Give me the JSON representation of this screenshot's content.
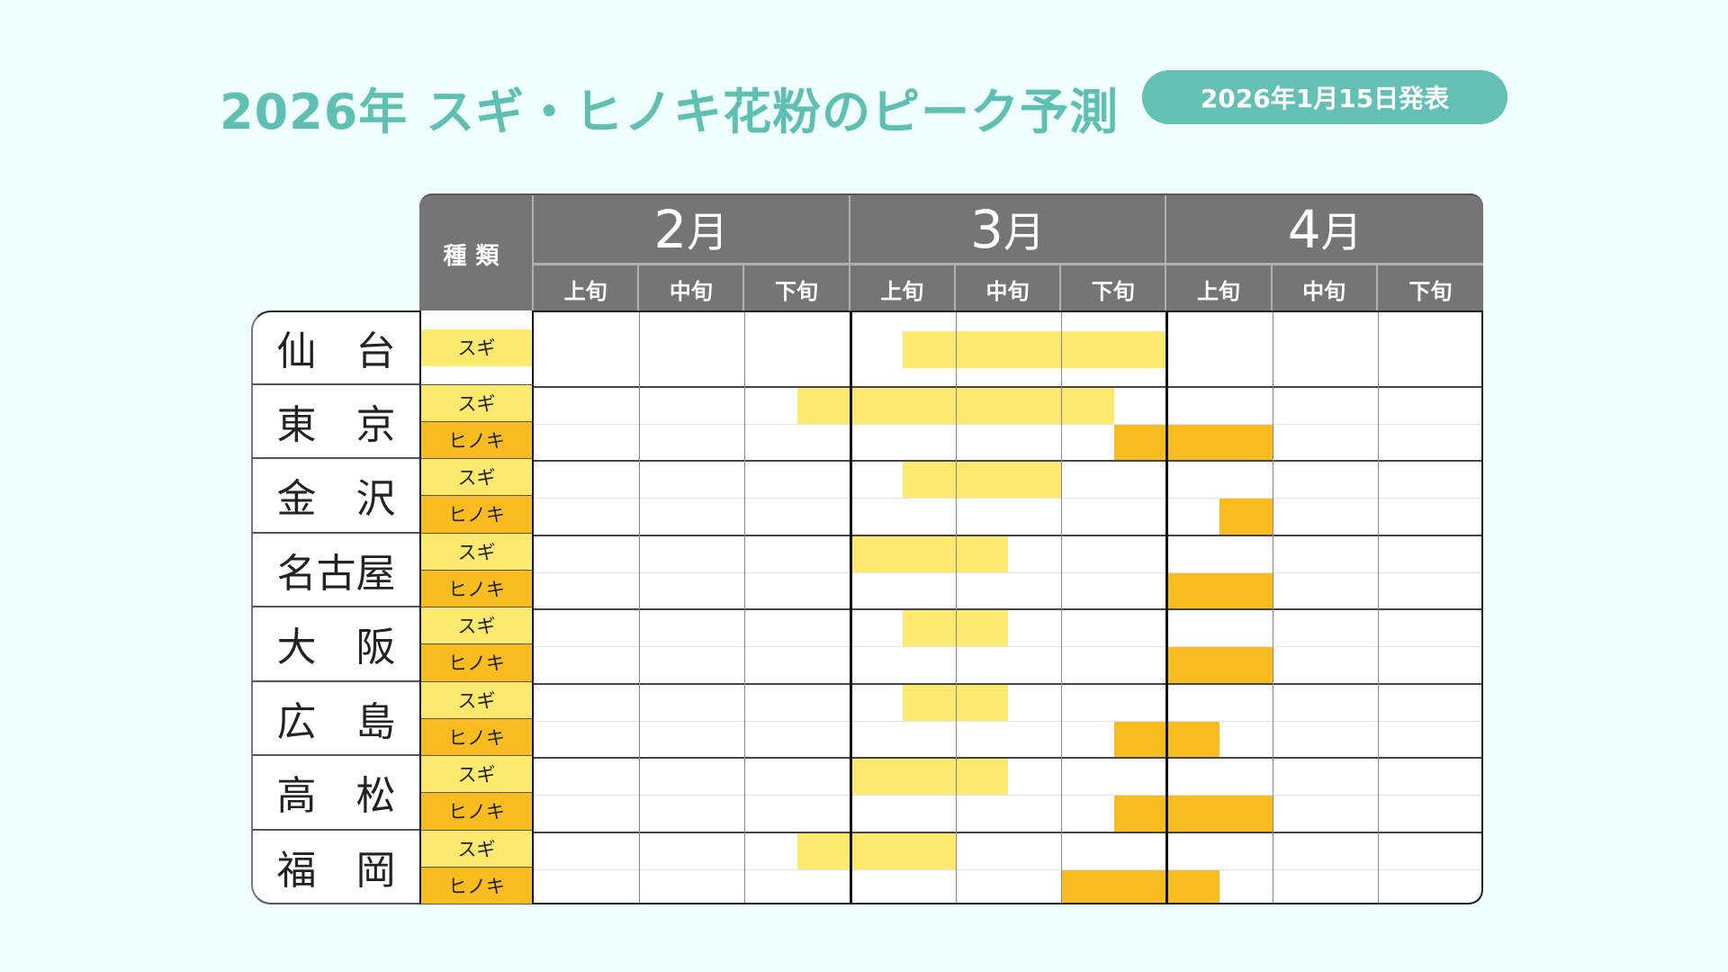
{
  "header": {
    "title": "2026年 スギ・ヒノキ花粉のピーク予測",
    "badge": "2026年1月15日発表"
  },
  "table": {
    "type_header": "種類",
    "months": [
      {
        "num": "2",
        "suffix": "月"
      },
      {
        "num": "3",
        "suffix": "月"
      },
      {
        "num": "4",
        "suffix": "月"
      }
    ],
    "dekads": [
      "上旬",
      "中旬",
      "下旬",
      "上旬",
      "中旬",
      "下旬",
      "上旬",
      "中旬",
      "下旬"
    ],
    "colors": {
      "sugi": "#fde96d",
      "hinoki": "#f8bc20",
      "header": "#757575",
      "accent": "#64c0b4"
    }
  },
  "chart_data": {
    "type": "gantt",
    "title": "2026年 スギ・ヒノキ花粉のピーク予測",
    "subtitle": "2026年1月15日発表",
    "x_units": "dekad index (0=2月上旬 ... 8=4月下旬), half-dekad precision",
    "x_categories": [
      "2月上旬",
      "2月中旬",
      "2月下旬",
      "3月上旬",
      "3月中旬",
      "3月下旬",
      "4月上旬",
      "4月中旬",
      "4月下旬"
    ],
    "legend": [
      {
        "name": "スギ",
        "color": "#fde96d"
      },
      {
        "name": "ヒノキ",
        "color": "#f8bc20"
      }
    ],
    "rows": [
      {
        "city": "仙台",
        "series": [
          {
            "type": "スギ",
            "start": 3.5,
            "end": 6.0
          }
        ]
      },
      {
        "city": "東京",
        "series": [
          {
            "type": "スギ",
            "start": 2.5,
            "end": 5.5
          },
          {
            "type": "ヒノキ",
            "start": 5.5,
            "end": 7.0
          }
        ]
      },
      {
        "city": "金沢",
        "series": [
          {
            "type": "スギ",
            "start": 3.5,
            "end": 5.0
          },
          {
            "type": "ヒノキ",
            "start": 6.5,
            "end": 7.0
          }
        ]
      },
      {
        "city": "名古屋",
        "series": [
          {
            "type": "スギ",
            "start": 3.0,
            "end": 4.5
          },
          {
            "type": "ヒノキ",
            "start": 6.0,
            "end": 7.0
          }
        ]
      },
      {
        "city": "大阪",
        "series": [
          {
            "type": "スギ",
            "start": 3.5,
            "end": 4.5
          },
          {
            "type": "ヒノキ",
            "start": 6.0,
            "end": 7.0
          }
        ]
      },
      {
        "city": "広島",
        "series": [
          {
            "type": "スギ",
            "start": 3.5,
            "end": 4.5
          },
          {
            "type": "ヒノキ",
            "start": 5.5,
            "end": 6.5
          }
        ]
      },
      {
        "city": "高松",
        "series": [
          {
            "type": "スギ",
            "start": 3.0,
            "end": 4.5
          },
          {
            "type": "ヒノキ",
            "start": 5.5,
            "end": 7.0
          }
        ]
      },
      {
        "city": "福岡",
        "series": [
          {
            "type": "スギ",
            "start": 2.5,
            "end": 4.0
          },
          {
            "type": "ヒノキ",
            "start": 5.0,
            "end": 6.5
          }
        ]
      }
    ]
  }
}
